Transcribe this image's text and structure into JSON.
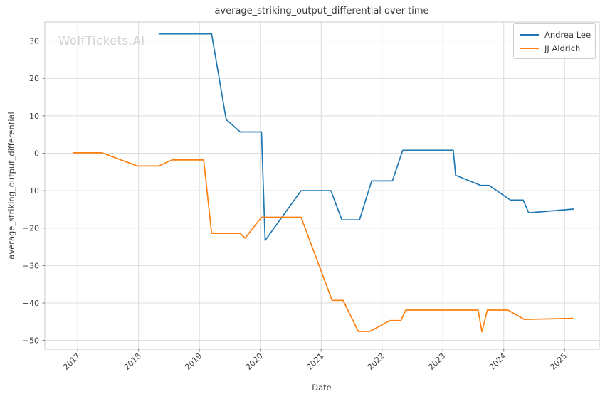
{
  "watermark": {
    "text": "WolfTickets.AI"
  },
  "colors": {
    "background": "#ffffff",
    "grid": "#dcdcdc",
    "spine": "#c9c9c9",
    "tick": "#7a7a7a",
    "text": "#3a3a3a",
    "watermark": "#d2d2d2",
    "series_blue": "#1f77b4",
    "series_orange": "#ff7f0e"
  },
  "chart_data": {
    "type": "line",
    "title": "average_striking_output_differential over time",
    "xlabel": "Date",
    "ylabel": "average_striking_output_differential",
    "xlim": [
      2016.46,
      2025.57
    ],
    "ylim": [
      -52.35,
      35.05
    ],
    "x_ticks": [
      2017,
      2018,
      2019,
      2020,
      2021,
      2022,
      2023,
      2024,
      2025
    ],
    "x_tick_labels": [
      "2017",
      "2018",
      "2019",
      "2020",
      "2021",
      "2022",
      "2023",
      "2024",
      "2025"
    ],
    "y_ticks": [
      30,
      20,
      10,
      0,
      -10,
      -20,
      -30,
      -40,
      -50
    ],
    "y_tick_labels": [
      "30",
      "20",
      "10",
      "0",
      "−10",
      "−20",
      "−30",
      "−40",
      "−50"
    ],
    "grid": true,
    "legend_position": "upper right",
    "series": [
      {
        "name": "Andrea Lee",
        "color": "#1f77b4",
        "points": [
          [
            2018.33,
            31.9
          ],
          [
            2019.2,
            31.9
          ],
          [
            2019.44,
            9.0
          ],
          [
            2019.67,
            5.7
          ],
          [
            2020.02,
            5.7
          ],
          [
            2020.08,
            -23.3
          ],
          [
            2020.67,
            -10.0
          ],
          [
            2021.16,
            -10.0
          ],
          [
            2021.34,
            -17.8
          ],
          [
            2021.63,
            -17.8
          ],
          [
            2021.83,
            -7.4
          ],
          [
            2022.17,
            -7.4
          ],
          [
            2022.34,
            0.8
          ],
          [
            2023.17,
            0.8
          ],
          [
            2023.21,
            -5.9
          ],
          [
            2023.62,
            -8.6
          ],
          [
            2023.76,
            -8.6
          ],
          [
            2024.11,
            -12.5
          ],
          [
            2024.32,
            -12.5
          ],
          [
            2024.41,
            -15.9
          ],
          [
            2025.16,
            -14.9
          ]
        ]
      },
      {
        "name": "JJ Aldrich",
        "color": "#ff7f0e",
        "points": [
          [
            2016.92,
            0.1
          ],
          [
            2017.4,
            0.1
          ],
          [
            2017.98,
            -3.4
          ],
          [
            2018.33,
            -3.4
          ],
          [
            2018.55,
            -1.8
          ],
          [
            2019.07,
            -1.8
          ],
          [
            2019.2,
            -21.4
          ],
          [
            2019.67,
            -21.4
          ],
          [
            2019.75,
            -22.7
          ],
          [
            2020.02,
            -17.1
          ],
          [
            2020.67,
            -17.1
          ],
          [
            2021.18,
            -39.3
          ],
          [
            2021.36,
            -39.3
          ],
          [
            2021.61,
            -47.6
          ],
          [
            2021.8,
            -47.6
          ],
          [
            2022.13,
            -44.7
          ],
          [
            2022.31,
            -44.7
          ],
          [
            2022.39,
            -41.9
          ],
          [
            2023.58,
            -41.9
          ],
          [
            2023.64,
            -47.7
          ],
          [
            2023.73,
            -41.9
          ],
          [
            2024.07,
            -41.9
          ],
          [
            2024.34,
            -44.4
          ],
          [
            2025.14,
            -44.1
          ]
        ]
      }
    ]
  }
}
